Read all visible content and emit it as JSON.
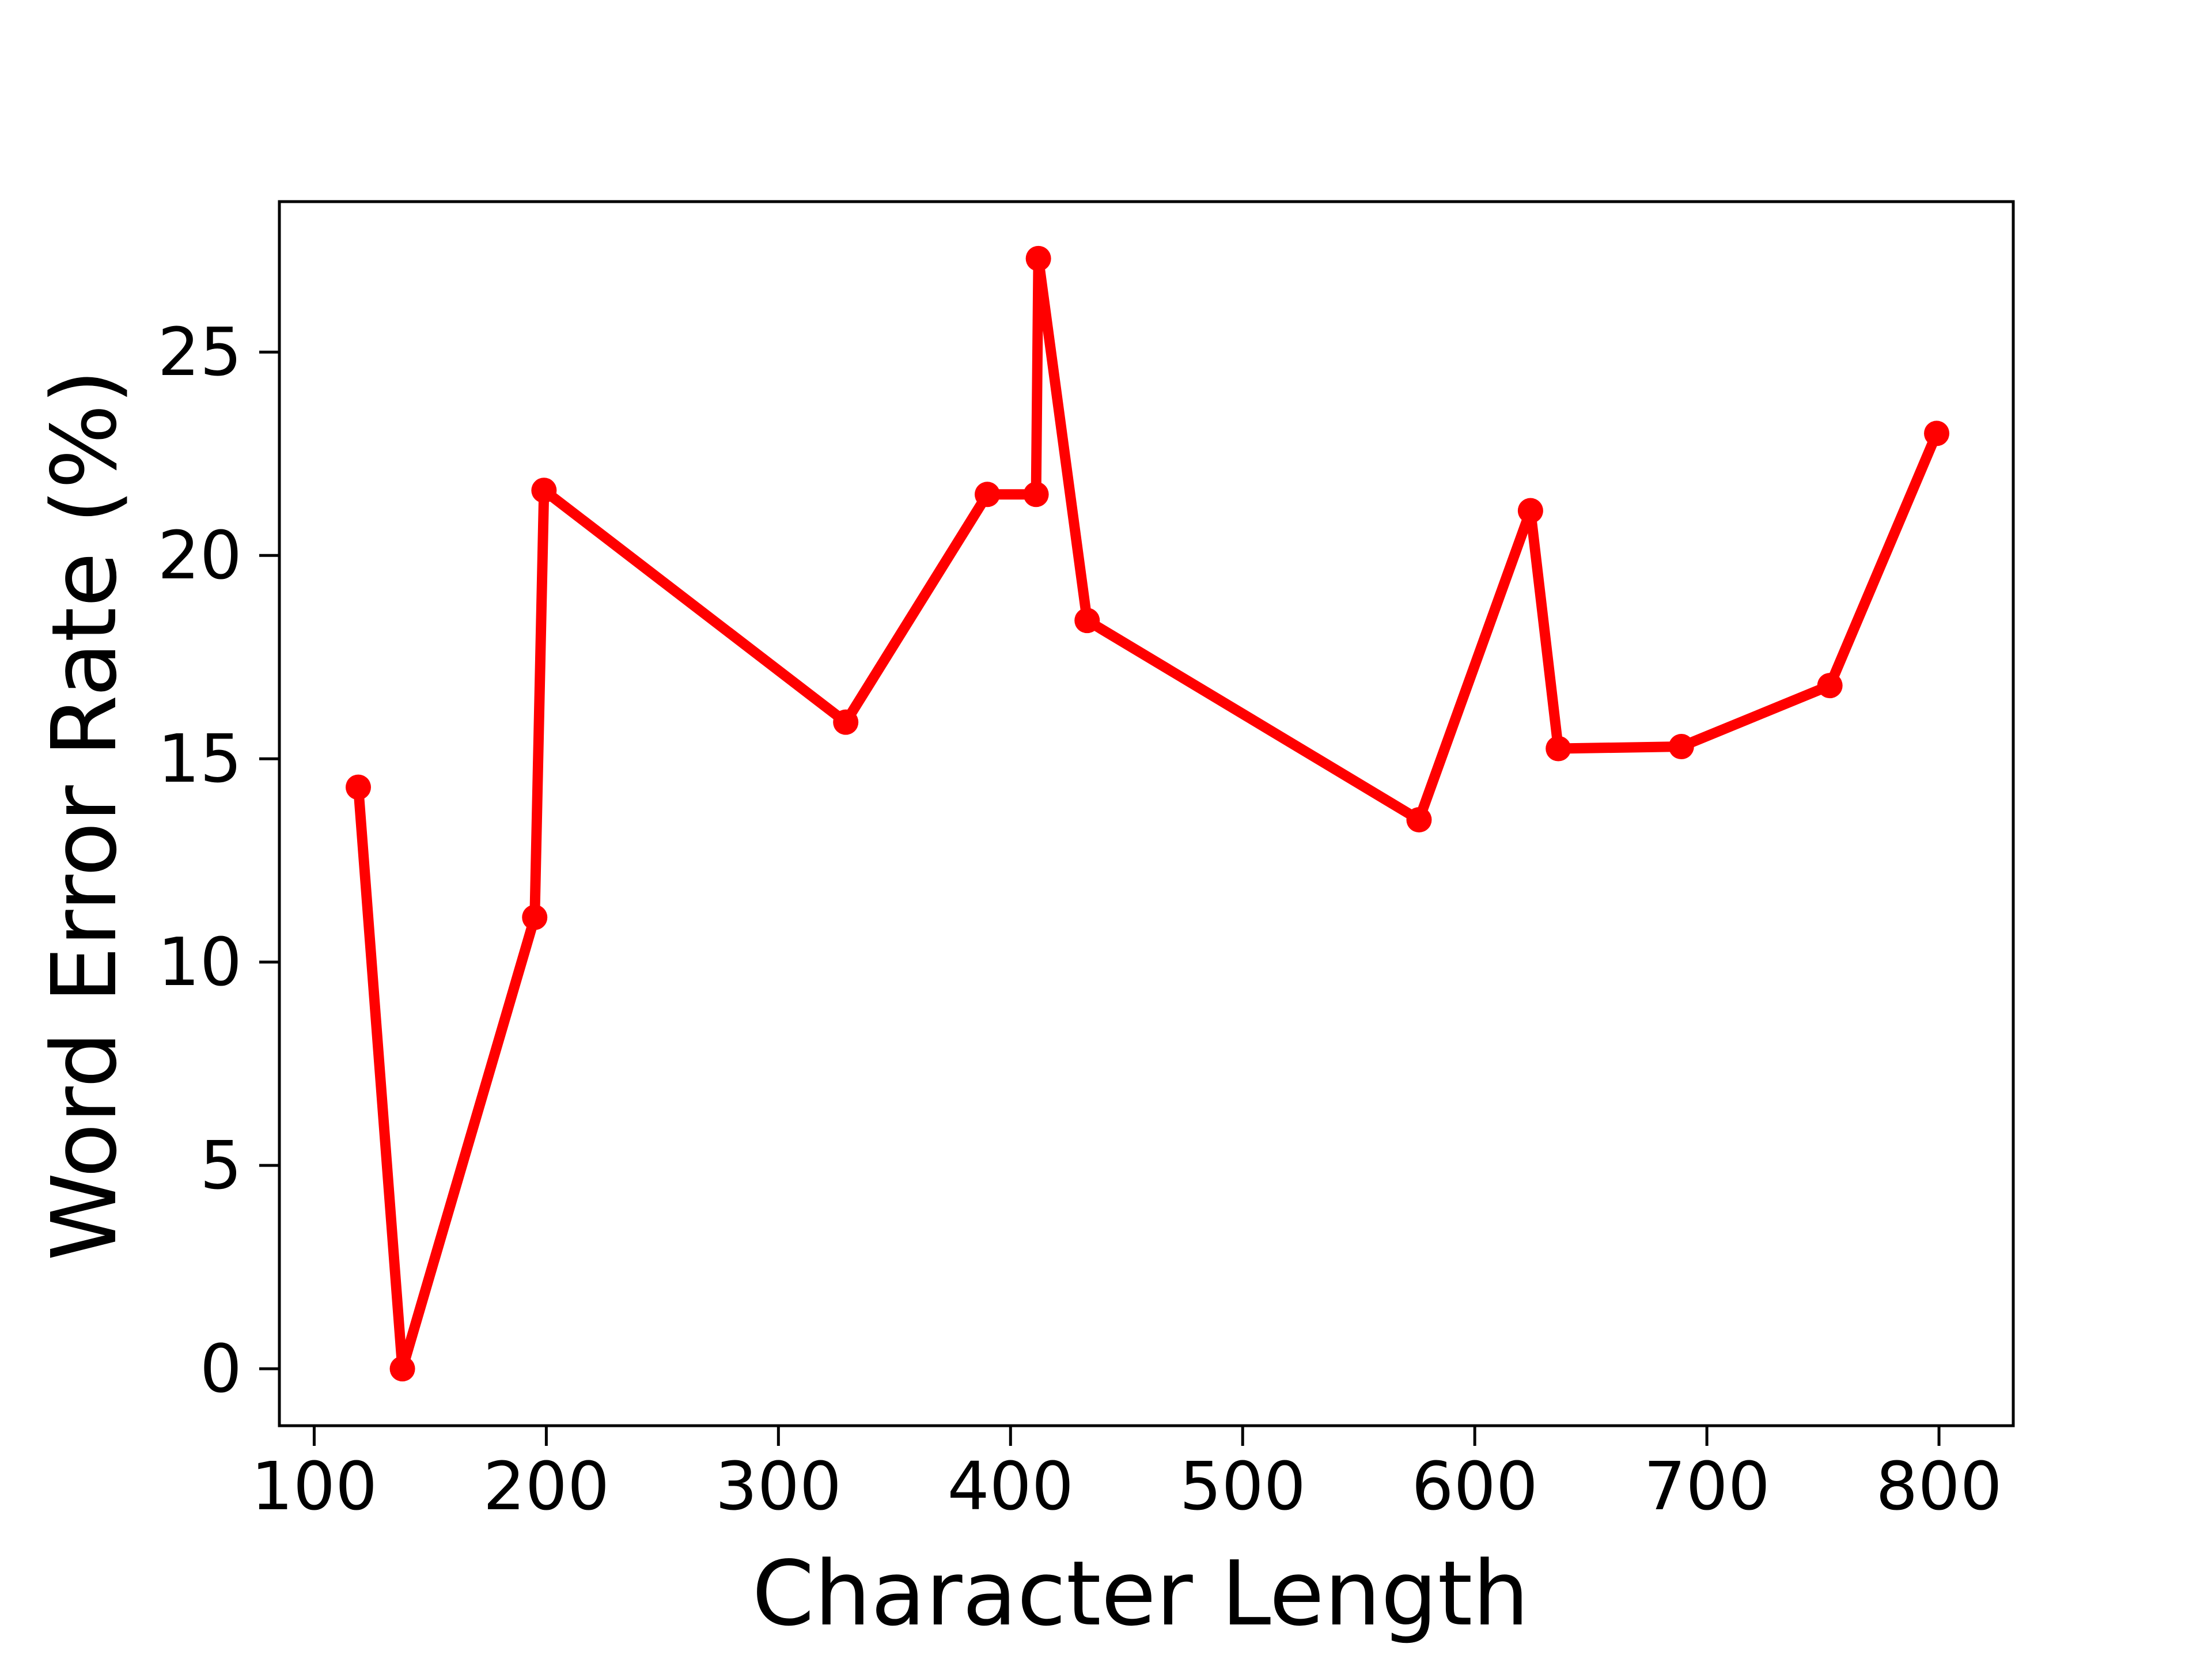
{
  "chart_data": {
    "type": "line",
    "xlabel": "Character Length",
    "ylabel": "Word Error Rate (%)",
    "xlim": [
      85,
      832
    ],
    "ylim": [
      -1.4,
      28.7
    ],
    "xticks": [
      100,
      200,
      300,
      400,
      500,
      600,
      700,
      800
    ],
    "yticks": [
      0,
      5,
      10,
      15,
      20,
      25
    ],
    "color": "#ff0000",
    "grid": false,
    "series": [
      {
        "x": [
          119,
          138,
          195,
          199,
          329,
          390,
          411,
          412,
          433,
          576,
          624,
          636,
          689,
          753,
          799
        ],
        "y": [
          14.3,
          0.0,
          11.1,
          21.6,
          15.9,
          21.5,
          21.5,
          27.3,
          18.4,
          13.5,
          21.1,
          15.25,
          15.3,
          16.8,
          23.0
        ]
      }
    ]
  }
}
